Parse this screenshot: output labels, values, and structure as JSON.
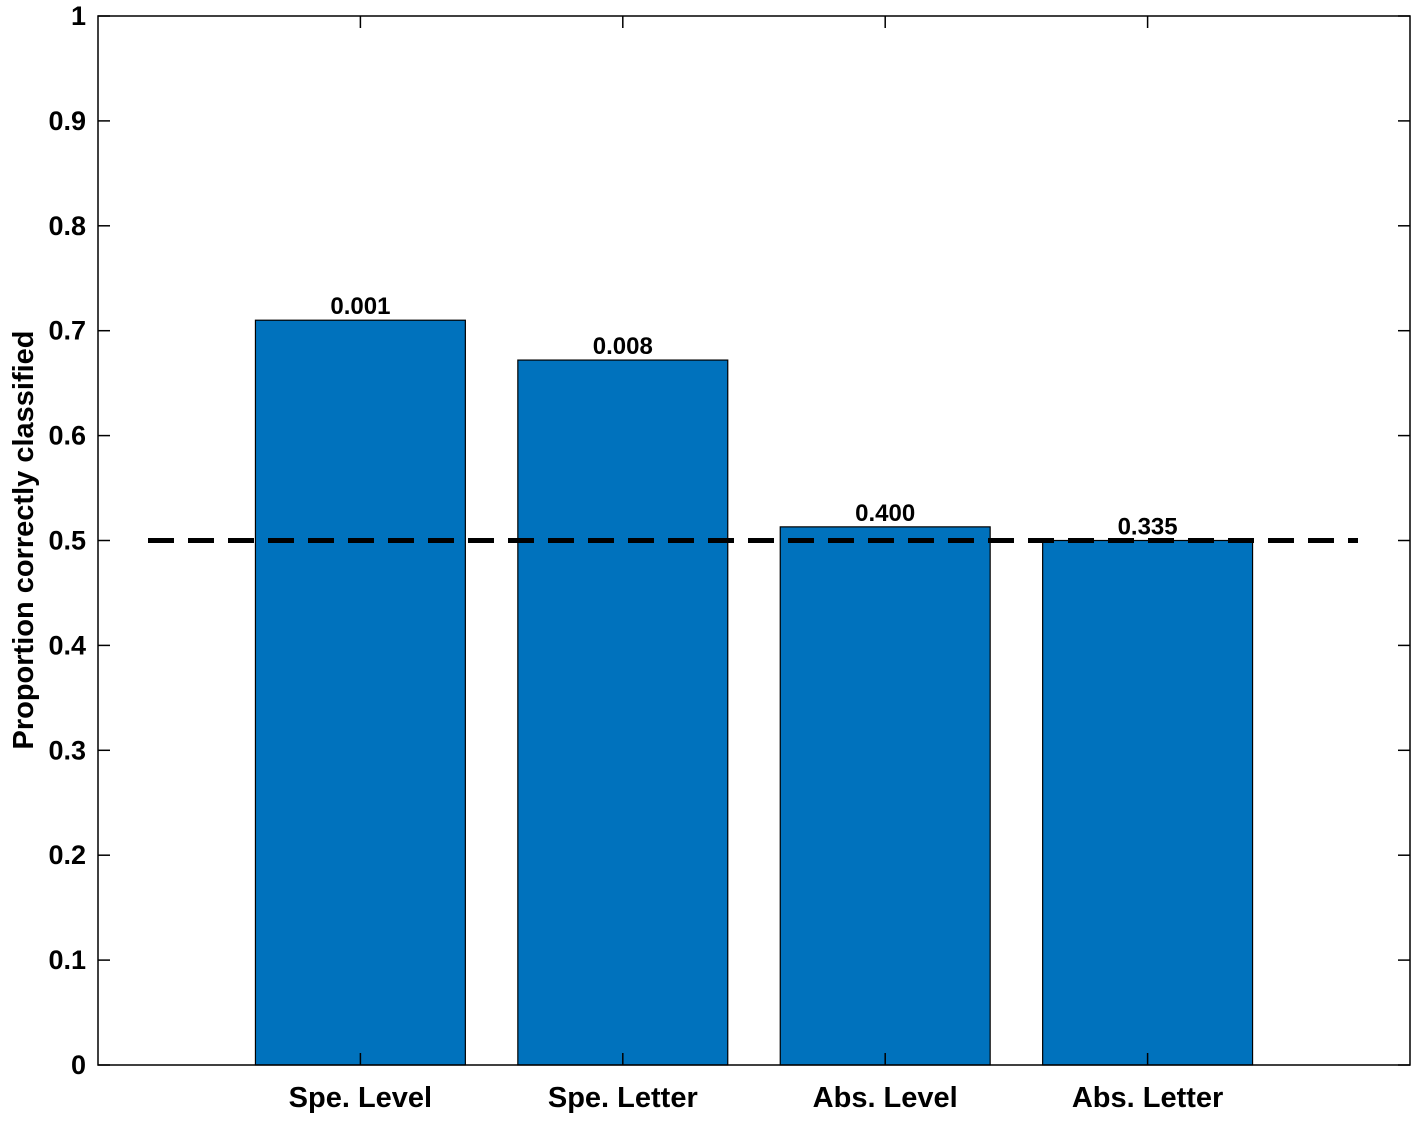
{
  "chart_data": {
    "type": "bar",
    "categories": [
      "Spe. Level",
      "Spe. Letter",
      "Abs. Level",
      "Abs. Letter"
    ],
    "values": [
      0.71,
      0.672,
      0.513,
      0.5
    ],
    "bar_labels": [
      "0.001",
      "0.008",
      "0.400",
      "0.335"
    ],
    "reference_line": {
      "y": 0.5,
      "style": "dashed",
      "color": "#000000"
    },
    "title": "",
    "xlabel": "",
    "ylabel": "Proportion correctly classified",
    "ylim": [
      0,
      1
    ],
    "xlim": [
      0,
      5
    ],
    "yticks": [
      "0",
      "0.1",
      "0.2",
      "0.3",
      "0.4",
      "0.5",
      "0.6",
      "0.7",
      "0.8",
      "0.9",
      "1"
    ],
    "grid": false,
    "legend": "none",
    "bar_color": "#0072bd"
  }
}
